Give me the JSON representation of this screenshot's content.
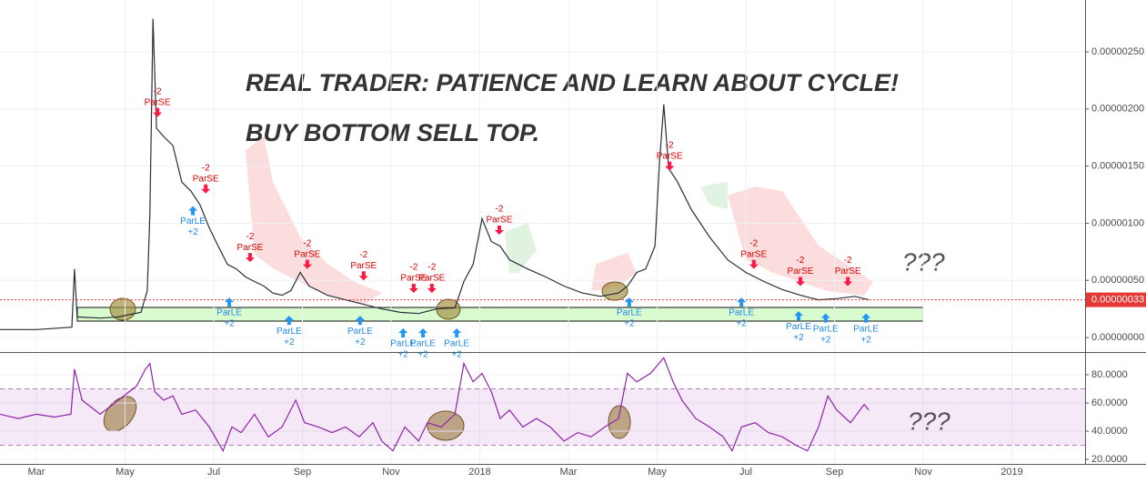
{
  "chart_data": [
    {
      "type": "line",
      "title": "REAL TRADER: PATIENCE AND LEARN ABOUT CYCLE!",
      "subtitle": "BUY BOTTOM SELL TOP.",
      "annotations": [
        "???"
      ],
      "x": [
        -0.82,
        0,
        0.8,
        0.86,
        0.92,
        1.44,
        1.85,
        2.36,
        2.5,
        2.56,
        2.63,
        2.71,
        2.87,
        3.08,
        3.28,
        3.49,
        3.69,
        3.9,
        4.1,
        4.31,
        4.51,
        4.72,
        4.92,
        5.13,
        5.33,
        5.54,
        5.74,
        5.95,
        6.15,
        6.36,
        6.56,
        6.97,
        7.38,
        7.79,
        8.21,
        8.62,
        9.03,
        9.44,
        9.64,
        9.85,
        10.05,
        10.26,
        10.46,
        10.67,
        11.08,
        11.49,
        11.9,
        12.31,
        12.72,
        13.13,
        13.33,
        13.54,
        13.74,
        13.95,
        14.05,
        14.15,
        14.26,
        14.46,
        14.77,
        15.18,
        15.59,
        16.0,
        16.41,
        16.82,
        17.23,
        17.64,
        18.05,
        18.46,
        18.77
      ],
      "series": [
        {
          "color": "#2a2e39",
          "values": [
            7e-08,
            7e-08,
            9e-08,
            6e-07,
            1.8e-07,
            1.7e-07,
            1.8e-07,
            2.2e-07,
            4.1e-07,
            1.08e-06,
            2.79e-06,
            1.83e-06,
            1.76e-06,
            1.68e-06,
            1.36e-06,
            1.28e-06,
            1.16e-06,
            9.6e-07,
            8e-07,
            6.4e-07,
            6e-07,
            5.3e-07,
            4.9e-07,
            4.5e-07,
            3.9e-07,
            3.7e-07,
            4.1e-07,
            5.7e-07,
            4.5e-07,
            4.1e-07,
            3.7e-07,
            3.3e-07,
            2.9e-07,
            2.5e-07,
            2.2e-07,
            2.1e-07,
            2.5e-07,
            2.6e-07,
            4.9e-07,
            6.4e-07,
            1.04e-06,
            8.4e-07,
            8e-07,
            6.8e-07,
            6e-07,
            5.3e-07,
            4.5e-07,
            3.9e-07,
            3.6e-07,
            3.9e-07,
            4.5e-07,
            5.7e-07,
            6e-07,
            8e-07,
            1.52e-06,
            2.04e-06,
            1.48e-06,
            1.36e-06,
            1.12e-06,
            8.8e-07,
            6.8e-07,
            5.7e-07,
            4.9e-07,
            4.2e-07,
            3.7e-07,
            3.3e-07,
            3.4e-07,
            3.6e-07,
            3.3e-07
          ]
        }
      ],
      "xlim": [
        -0.82,
        23.65
      ],
      "ylim": [
        -1.27e-07,
        2.954e-06
      ],
      "yticks": [
        {
          "value": 0,
          "label": "0.00000000"
        },
        {
          "value": 5e-07,
          "label": "0.00000050"
        },
        {
          "value": 1e-06,
          "label": "0.00000100"
        },
        {
          "value": 1.5e-06,
          "label": "0.00000150"
        },
        {
          "value": 2e-06,
          "label": "0.00000200"
        },
        {
          "value": 2.5e-06,
          "label": "0.00000250"
        }
      ],
      "last_price": {
        "value": 3.3e-07,
        "label": "0.00000033",
        "color": "#e53935"
      },
      "short_signals": {
        "label": "ParSE",
        "qty": "-2",
        "color": "#ff1744",
        "x": [
          2.73,
          3.82,
          4.82,
          6.11,
          7.38,
          8.51,
          8.92,
          10.44,
          14.28,
          16.18,
          17.23,
          18.3
        ],
        "price": [
          1.93e-06,
          1.26e-06,
          6.6e-07,
          6e-07,
          5e-07,
          3.9e-07,
          3.9e-07,
          9e-07,
          1.46e-06,
          6e-07,
          4.5e-07,
          4.5e-07
        ]
      },
      "long_signals": {
        "label": "ParLE",
        "qty": "+2",
        "color": "#2196f3",
        "x": [
          3.53,
          4.35,
          5.7,
          7.3,
          8.27,
          8.72,
          9.48,
          13.37,
          15.9,
          17.19,
          17.8,
          18.71
        ],
        "price": [
          1.15e-06,
          3.5e-07,
          1.9e-07,
          1.9e-07,
          8e-08,
          8e-08,
          8e-08,
          3.5e-07,
          3.5e-07,
          2.3e-07,
          2.1e-07,
          2.1e-07
        ]
      },
      "grid": true
    },
    {
      "type": "line",
      "annotations": [
        "???"
      ],
      "x": [
        -0.82,
        -0.41,
        0,
        0.41,
        0.78,
        0.86,
        1.03,
        1.44,
        1.85,
        2.26,
        2.46,
        2.56,
        2.67,
        2.87,
        3.08,
        3.28,
        3.59,
        3.9,
        4.21,
        4.41,
        4.62,
        4.92,
        5.23,
        5.54,
        5.85,
        6.05,
        6.36,
        6.67,
        6.97,
        7.28,
        7.59,
        7.79,
        8.04,
        8.31,
        8.62,
        8.82,
        9.13,
        9.44,
        9.64,
        9.85,
        10.05,
        10.26,
        10.46,
        10.67,
        10.97,
        11.28,
        11.59,
        11.9,
        12.21,
        12.51,
        12.82,
        13.13,
        13.33,
        13.54,
        13.85,
        14.15,
        14.36,
        14.56,
        14.87,
        15.18,
        15.49,
        15.69,
        15.9,
        16.21,
        16.51,
        16.82,
        17.13,
        17.39,
        17.64,
        17.85,
        18.05,
        18.36,
        18.67,
        18.77
      ],
      "series": [
        {
          "color": "#8e24aa",
          "values": [
            52,
            49,
            52,
            50,
            52,
            84,
            62,
            52,
            62,
            72,
            84,
            88,
            68,
            62,
            65,
            52,
            55,
            43,
            26,
            43,
            39,
            52,
            36,
            43,
            62,
            46,
            43,
            39,
            43,
            36,
            46,
            33,
            26,
            43,
            33,
            46,
            43,
            52,
            88,
            75,
            81,
            68,
            49,
            55,
            43,
            49,
            43,
            33,
            39,
            36,
            43,
            49,
            81,
            75,
            81,
            92,
            75,
            62,
            49,
            43,
            36,
            26,
            43,
            46,
            39,
            36,
            30,
            26,
            43,
            65,
            55,
            46,
            59,
            55
          ]
        }
      ],
      "xlim": [
        -0.82,
        23.65
      ],
      "ylim": [
        16.8,
        95.5
      ],
      "yticks": [
        {
          "value": 20,
          "label": "20.0000"
        },
        {
          "value": 40,
          "label": "40.0000"
        },
        {
          "value": 60,
          "label": "60.0000"
        },
        {
          "value": 80,
          "label": "80.0000"
        }
      ],
      "band": [
        30,
        70
      ],
      "xticks": [
        {
          "value": 0,
          "label": "Mar"
        },
        {
          "value": 2,
          "label": "May"
        },
        {
          "value": 4,
          "label": "Jul"
        },
        {
          "value": 6,
          "label": "Sep"
        },
        {
          "value": 8,
          "label": "Nov"
        },
        {
          "value": 10,
          "label": "2018"
        },
        {
          "value": 12,
          "label": "Mar"
        },
        {
          "value": 14,
          "label": "May"
        },
        {
          "value": 16,
          "label": "Jul"
        },
        {
          "value": 18,
          "label": "Sep"
        },
        {
          "value": 20,
          "label": "Nov"
        },
        {
          "value": 22,
          "label": "2019"
        }
      ],
      "grid": true
    }
  ]
}
